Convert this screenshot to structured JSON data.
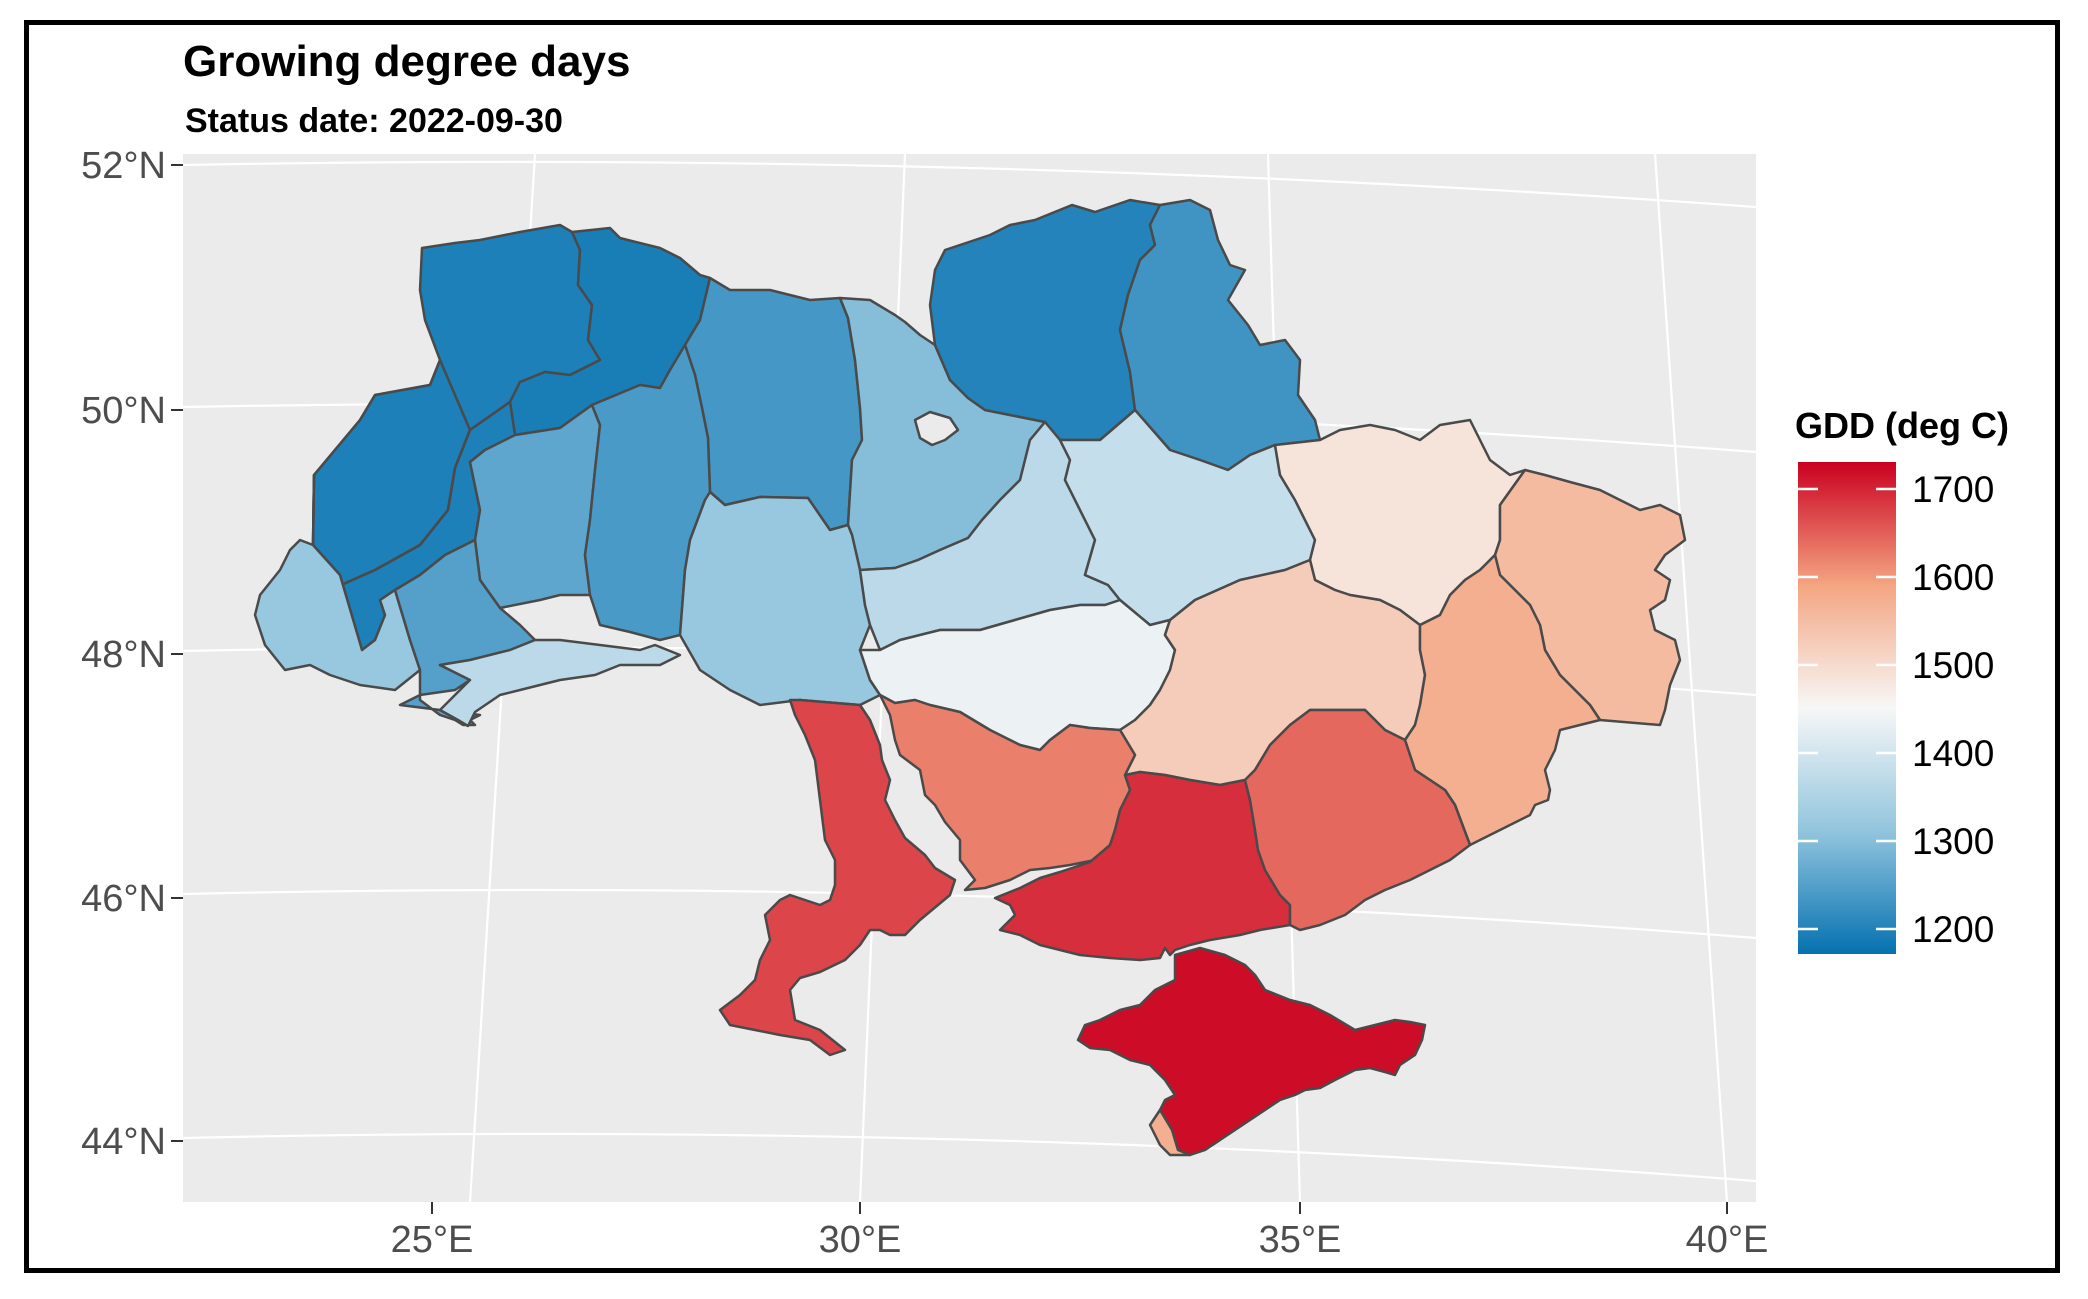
{
  "title": "Growing degree days",
  "subtitle": "Status date:  2022-09-30",
  "legend": {
    "title": "GDD (deg C)",
    "ticks": [
      "1700",
      "1600",
      "1500",
      "1400",
      "1300",
      "1200"
    ],
    "colors": [
      "#ca0020",
      "#f4a582",
      "#f7f7f7",
      "#92c5de",
      "#0571b0"
    ]
  },
  "axes": {
    "y_ticks": [
      "52°N",
      "50°N",
      "48°N",
      "46°N",
      "44°N"
    ],
    "x_ticks": [
      "25°E",
      "30°E",
      "35°E",
      "40°E"
    ]
  },
  "colors": {
    "panel_background": "#ebebeb",
    "graticule": "#ffffff",
    "border": "#4a4a4a"
  },
  "chart_data": {
    "type": "choropleth",
    "variable": "GDD (deg C)",
    "scale": {
      "min": 1170,
      "max": 1740
    },
    "regions": [
      {
        "id": "volyn",
        "value": 1195
      },
      {
        "id": "rivne",
        "value": 1190
      },
      {
        "id": "zhytomyr",
        "value": 1235
      },
      {
        "id": "kyiv",
        "value": 1300
      },
      {
        "id": "chernihiv",
        "value": 1200
      },
      {
        "id": "sumy",
        "value": 1230
      },
      {
        "id": "lviv",
        "value": 1195
      },
      {
        "id": "ternopil",
        "value": 1260
      },
      {
        "id": "khmelnytskyi",
        "value": 1240
      },
      {
        "id": "vinnytsia",
        "value": 1320
      },
      {
        "id": "zakarpattia",
        "value": 1320
      },
      {
        "id": "ivano-frankivsk",
        "value": 1250
      },
      {
        "id": "chernivtsi",
        "value": 1370
      },
      {
        "id": "cherkasy",
        "value": 1370
      },
      {
        "id": "poltava",
        "value": 1385
      },
      {
        "id": "kharkiv",
        "value": 1490
      },
      {
        "id": "luhansk",
        "value": 1560
      },
      {
        "id": "kirovohrad",
        "value": 1440
      },
      {
        "id": "dnipropetrovsk",
        "value": 1530
      },
      {
        "id": "donetsk",
        "value": 1580
      },
      {
        "id": "odesa",
        "value": 1680
      },
      {
        "id": "mykolaiv",
        "value": 1630
      },
      {
        "id": "kherson",
        "value": 1700
      },
      {
        "id": "zaporizhzhia",
        "value": 1650
      },
      {
        "id": "crimea",
        "value": 1730
      },
      {
        "id": "sevastopol",
        "value": 1580
      }
    ]
  }
}
